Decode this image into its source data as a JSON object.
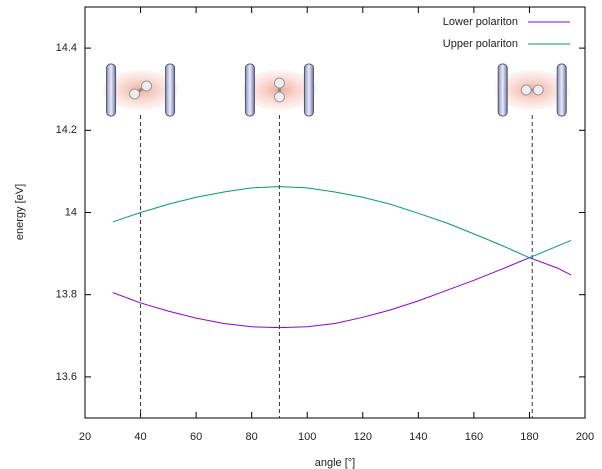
{
  "chart_data": {
    "type": "line",
    "x_label": "angle [°]",
    "y_label": "energy [eV]",
    "x": [
      30,
      40,
      50,
      60,
      70,
      80,
      90,
      100,
      110,
      120,
      130,
      140,
      150,
      160,
      170,
      180,
      190,
      195
    ],
    "series": [
      {
        "name": "Lower polariton",
        "color": "#9400d3",
        "values": [
          13.805,
          13.78,
          13.76,
          13.743,
          13.73,
          13.722,
          13.72,
          13.722,
          13.73,
          13.745,
          13.763,
          13.785,
          13.81,
          13.835,
          13.862,
          13.89,
          13.865,
          13.848
        ]
      },
      {
        "name": "Upper polariton",
        "color": "#009e73",
        "values": [
          13.977,
          14.0,
          14.02,
          14.037,
          14.05,
          14.06,
          14.063,
          14.06,
          14.05,
          14.037,
          14.02,
          13.998,
          13.975,
          13.948,
          13.92,
          13.89,
          13.918,
          13.932
        ]
      }
    ],
    "markers": [
      40,
      90,
      181
    ],
    "xlim": [
      20,
      200
    ],
    "xticks": [
      20,
      40,
      60,
      80,
      100,
      120,
      140,
      160,
      180,
      200
    ],
    "ylim": [
      13.5,
      14.5
    ],
    "yticks": [
      13.6,
      13.8,
      14,
      14.2,
      14.4
    ],
    "grid": false,
    "legend": "top-right"
  }
}
